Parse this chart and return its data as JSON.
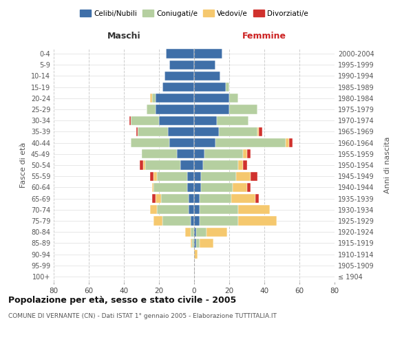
{
  "age_groups": [
    "100+",
    "95-99",
    "90-94",
    "85-89",
    "80-84",
    "75-79",
    "70-74",
    "65-69",
    "60-64",
    "55-59",
    "50-54",
    "45-49",
    "40-44",
    "35-39",
    "30-34",
    "25-29",
    "20-24",
    "15-19",
    "10-14",
    "5-9",
    "0-4"
  ],
  "birth_years": [
    "≤ 1904",
    "1905-1909",
    "1910-1914",
    "1915-1919",
    "1920-1924",
    "1925-1929",
    "1930-1934",
    "1935-1939",
    "1940-1944",
    "1945-1949",
    "1950-1954",
    "1955-1959",
    "1960-1964",
    "1965-1969",
    "1970-1974",
    "1975-1979",
    "1980-1984",
    "1985-1989",
    "1990-1994",
    "1995-1999",
    "2000-2004"
  ],
  "colors": {
    "celibi": "#3f6fa8",
    "coniugati": "#b5cfa0",
    "vedovi": "#f5c86e",
    "divorziati": "#d0312d"
  },
  "maschi": {
    "celibi": [
      0,
      0,
      0,
      0,
      0,
      2,
      3,
      3,
      4,
      4,
      8,
      10,
      14,
      15,
      20,
      22,
      22,
      18,
      17,
      14,
      16
    ],
    "coniugati": [
      0,
      0,
      0,
      1,
      2,
      16,
      18,
      16,
      19,
      17,
      20,
      20,
      22,
      17,
      16,
      5,
      2,
      0,
      0,
      0,
      0
    ],
    "vedovi": [
      0,
      0,
      0,
      1,
      3,
      5,
      4,
      3,
      1,
      2,
      1,
      0,
      0,
      0,
      0,
      0,
      1,
      0,
      0,
      0,
      0
    ],
    "divorziati": [
      0,
      0,
      0,
      0,
      0,
      0,
      0,
      2,
      0,
      2,
      2,
      0,
      0,
      1,
      1,
      0,
      0,
      0,
      0,
      0,
      0
    ]
  },
  "femmine": {
    "celibi": [
      0,
      0,
      0,
      1,
      1,
      3,
      3,
      3,
      4,
      4,
      5,
      6,
      12,
      14,
      13,
      20,
      20,
      18,
      15,
      12,
      16
    ],
    "coniugati": [
      0,
      0,
      0,
      2,
      6,
      22,
      22,
      18,
      18,
      20,
      20,
      22,
      40,
      22,
      18,
      16,
      5,
      2,
      0,
      0,
      0
    ],
    "vedovi": [
      0,
      0,
      2,
      8,
      12,
      22,
      18,
      14,
      8,
      8,
      3,
      2,
      2,
      1,
      0,
      0,
      0,
      0,
      0,
      0,
      0
    ],
    "divorziati": [
      0,
      0,
      0,
      0,
      0,
      0,
      0,
      2,
      2,
      4,
      2,
      2,
      2,
      2,
      0,
      0,
      0,
      0,
      0,
      0,
      0
    ]
  },
  "xlim": 80,
  "title": "Popolazione per età, sesso e stato civile - 2005",
  "subtitle": "COMUNE DI VERNANTE (CN) - Dati ISTAT 1° gennaio 2005 - Elaborazione TUTTITALIA.IT",
  "ylabel_left": "Fasce di età",
  "ylabel_right": "Anni di nascita",
  "xlabel_maschi": "Maschi",
  "xlabel_femmine": "Femmine",
  "legend_labels": [
    "Celibi/Nubili",
    "Coniugati/e",
    "Vedovi/e",
    "Divorziati/e"
  ]
}
